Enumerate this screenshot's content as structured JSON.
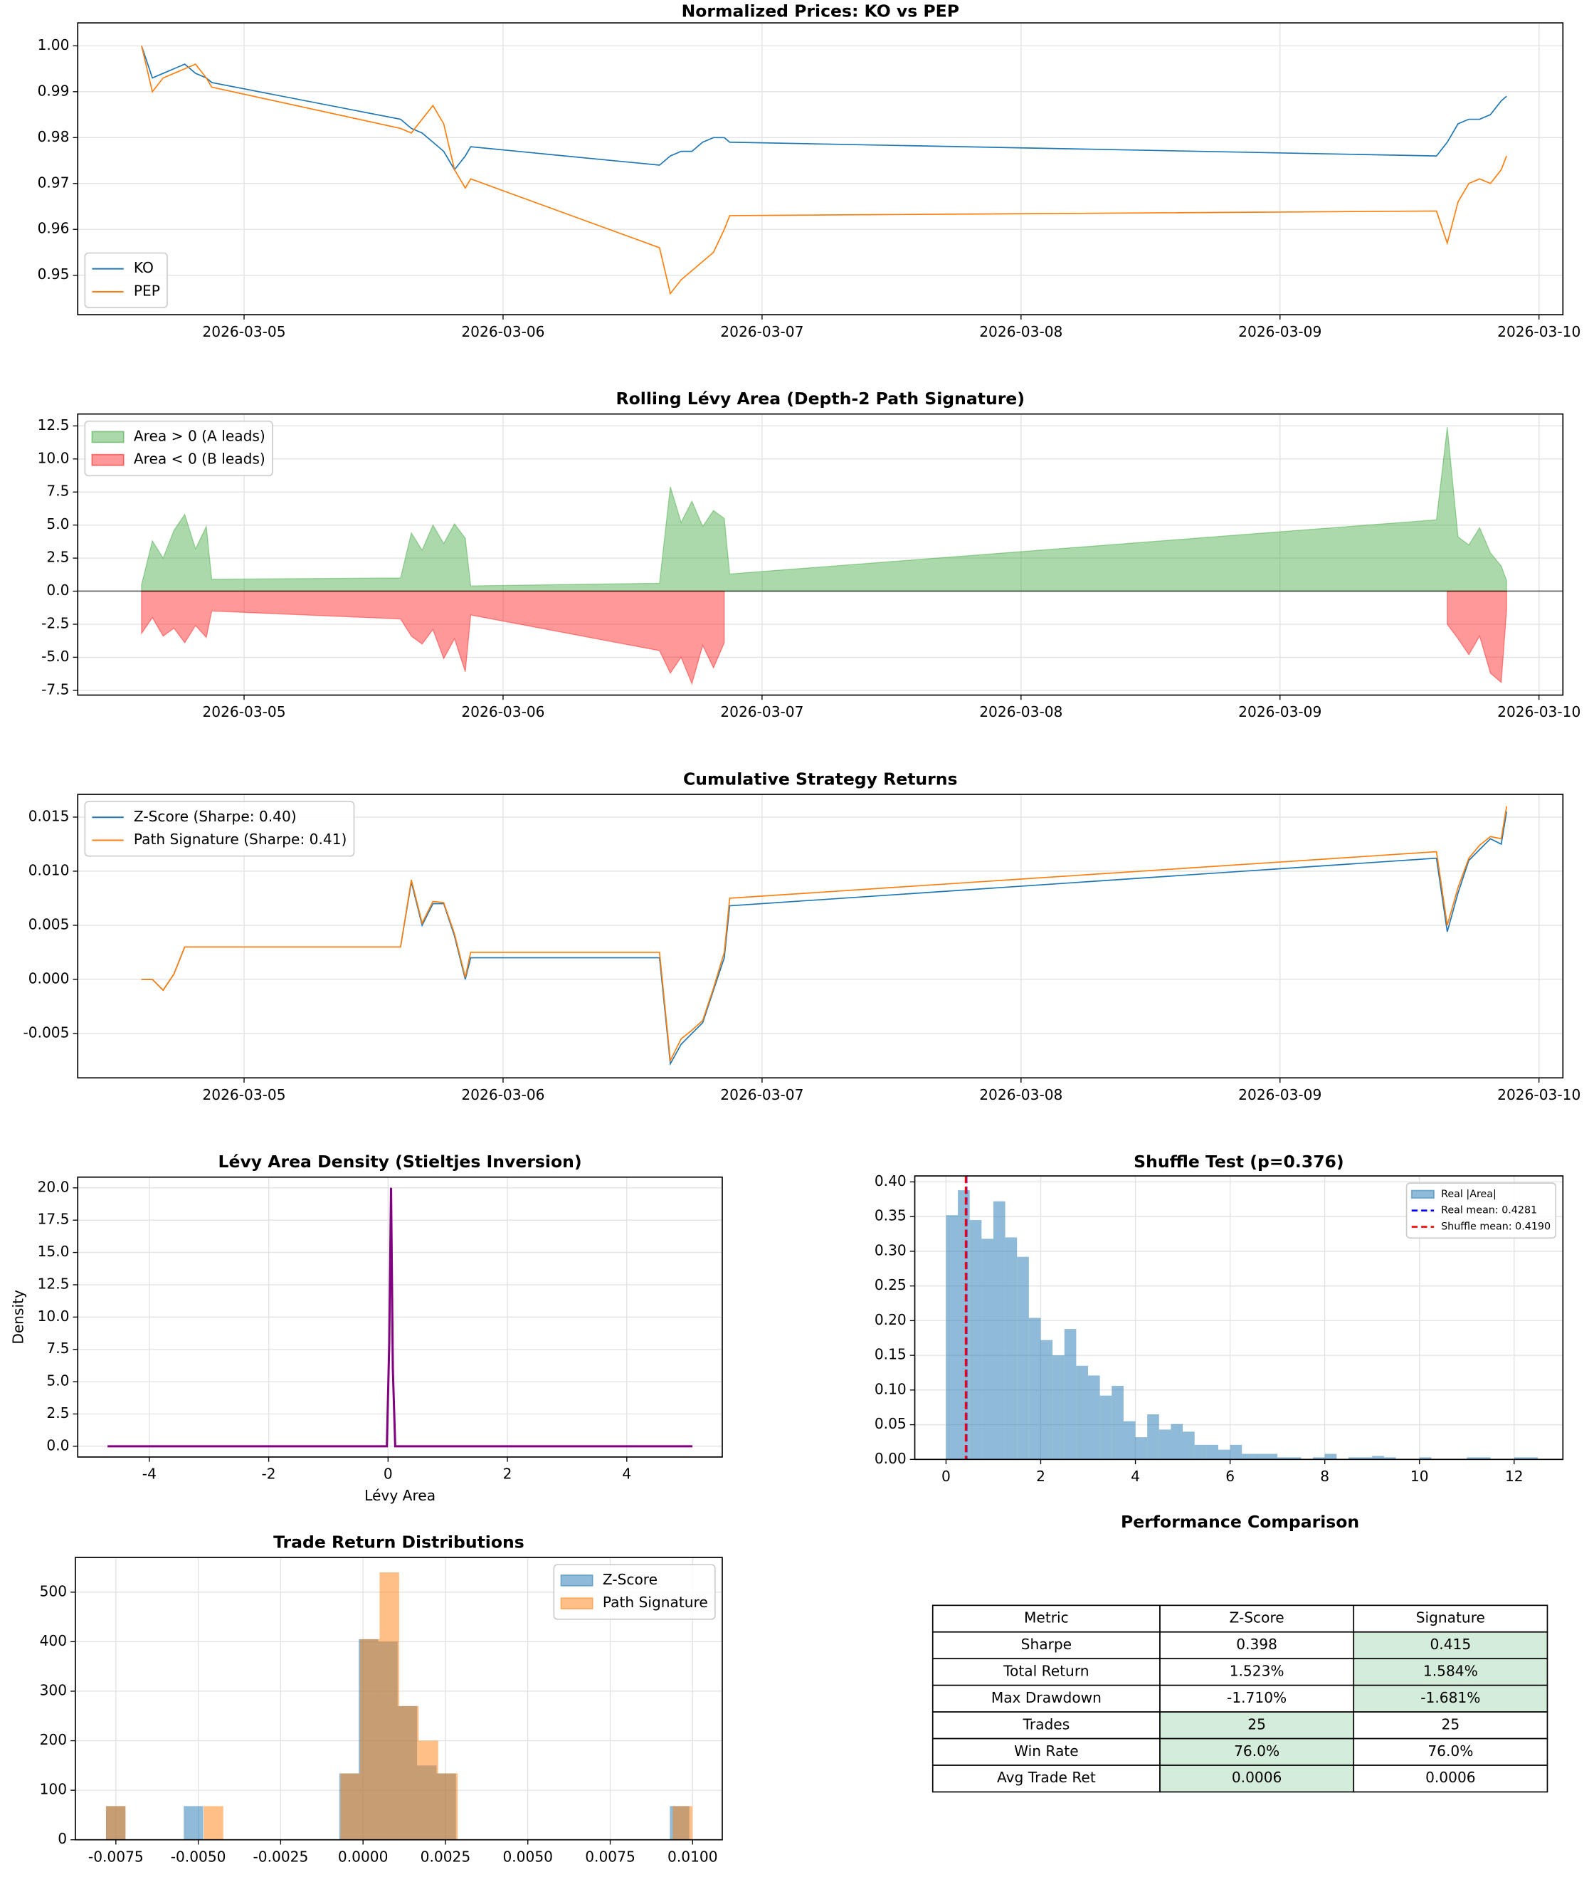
{
  "chart_data": [
    {
      "type": "line",
      "title": "Normalized Prices: KO vs PEP",
      "x": [
        "2026-03-04T14:30",
        "2026-03-04T15:30",
        "2026-03-04T16:30",
        "2026-03-04T17:30",
        "2026-03-04T18:30",
        "2026-03-04T19:30",
        "2026-03-04T20:30",
        "2026-03-04T21:00",
        "2026-03-05T14:30",
        "2026-03-05T15:30",
        "2026-03-05T16:30",
        "2026-03-05T17:30",
        "2026-03-05T18:30",
        "2026-03-05T19:30",
        "2026-03-05T20:30",
        "2026-03-05T21:00",
        "2026-03-06T14:30",
        "2026-03-06T15:30",
        "2026-03-06T16:30",
        "2026-03-06T17:30",
        "2026-03-06T18:30",
        "2026-03-06T19:30",
        "2026-03-06T20:30",
        "2026-03-06T21:00",
        "2026-03-09T14:30",
        "2026-03-09T15:30",
        "2026-03-09T16:30",
        "2026-03-09T17:30",
        "2026-03-09T18:30",
        "2026-03-09T19:30",
        "2026-03-09T20:30",
        "2026-03-09T21:00"
      ],
      "series": [
        {
          "name": "KO",
          "color": "#1f77b4",
          "values": [
            1.0,
            0.993,
            0.994,
            0.995,
            0.996,
            0.994,
            0.993,
            0.992,
            0.984,
            0.982,
            0.981,
            0.979,
            0.977,
            0.973,
            0.976,
            0.978,
            0.974,
            0.976,
            0.977,
            0.977,
            0.979,
            0.98,
            0.98,
            0.979,
            0.976,
            0.979,
            0.983,
            0.984,
            0.984,
            0.985,
            0.988,
            0.989
          ]
        },
        {
          "name": "PEP",
          "color": "#ff7f0e",
          "values": [
            1.0,
            0.99,
            0.993,
            0.994,
            0.995,
            0.996,
            0.993,
            0.991,
            0.982,
            0.981,
            0.984,
            0.987,
            0.983,
            0.973,
            0.969,
            0.971,
            0.956,
            0.946,
            0.949,
            0.951,
            0.953,
            0.955,
            0.96,
            0.963,
            0.964,
            0.957,
            0.966,
            0.97,
            0.971,
            0.97,
            0.973,
            0.976
          ]
        }
      ],
      "xlim": [
        "2026-03-04T08:35",
        "2026-03-10T02:13"
      ],
      "xticks": [
        "2026-03-05",
        "2026-03-06",
        "2026-03-07",
        "2026-03-08",
        "2026-03-09",
        "2026-03-10"
      ],
      "ylim": [
        0.9414,
        1.005
      ],
      "yticks": [
        0.95,
        0.96,
        0.97,
        0.98,
        0.99,
        {
          "value": 1,
          "label": "1.00"
        }
      ],
      "grid": true,
      "legend": "lower left"
    },
    {
      "type": "area",
      "title": "Rolling Lévy Area (Depth-2 Path Signature)",
      "x": [
        "2026-03-04T14:30",
        "2026-03-04T15:30",
        "2026-03-04T16:30",
        "2026-03-04T17:30",
        "2026-03-04T18:30",
        "2026-03-04T19:30",
        "2026-03-04T20:30",
        "2026-03-04T21:00",
        "2026-03-05T14:30",
        "2026-03-05T15:30",
        "2026-03-05T16:30",
        "2026-03-05T17:30",
        "2026-03-05T18:30",
        "2026-03-05T19:30",
        "2026-03-05T20:30",
        "2026-03-05T21:00",
        "2026-03-06T14:30",
        "2026-03-06T15:30",
        "2026-03-06T16:30",
        "2026-03-06T17:30",
        "2026-03-06T18:30",
        "2026-03-06T19:30",
        "2026-03-06T20:30",
        "2026-03-06T21:00",
        "2026-03-09T14:30",
        "2026-03-09T15:30",
        "2026-03-09T16:30",
        "2026-03-09T17:30",
        "2026-03-09T18:30",
        "2026-03-09T19:30",
        "2026-03-09T20:30",
        "2026-03-09T21:00"
      ],
      "series": [
        {
          "name": "Area > 0 (A leads)",
          "color": "#2ca02c",
          "values": [
            0.5,
            3.8,
            2.5,
            4.6,
            5.8,
            3.2,
            4.9,
            0.9,
            1.0,
            4.4,
            3.1,
            5.0,
            3.6,
            5.1,
            4.0,
            0.4,
            0.6,
            7.9,
            5.2,
            6.8,
            4.9,
            6.1,
            5.5,
            1.3,
            5.4,
            12.4,
            4.1,
            3.5,
            4.8,
            2.9,
            1.9,
            0.8
          ]
        },
        {
          "name": "Area < 0 (B leads)",
          "color": "#ff0000",
          "values": [
            -3.2,
            -2.0,
            -3.4,
            -2.8,
            -3.9,
            -2.6,
            -3.5,
            -1.5,
            -2.1,
            -3.4,
            -4.0,
            -2.9,
            -5.1,
            -3.6,
            -6.1,
            -1.8,
            -4.5,
            -6.2,
            -5.0,
            -7.0,
            -4.1,
            -5.8,
            -3.9,
            null,
            null,
            -2.5,
            -3.6,
            -4.8,
            -3.4,
            -6.2,
            -6.9,
            -1.4
          ]
        }
      ],
      "xlim": [
        "2026-03-04T08:35",
        "2026-03-10T02:13"
      ],
      "xticks": [
        "2026-03-05",
        "2026-03-06",
        "2026-03-07",
        "2026-03-08",
        "2026-03-09",
        "2026-03-10"
      ],
      "ylim": [
        -7.86,
        13.4
      ],
      "yticks": [
        -7.5,
        {
          "value": -5,
          "label": "-5.0"
        },
        -2.5,
        {
          "value": 0,
          "label": "0.0"
        },
        2.5,
        {
          "value": 5,
          "label": "5.0"
        },
        7.5,
        {
          "value": 10,
          "label": "10.0"
        },
        12.5
      ],
      "grid": true,
      "zero_line": true,
      "legend": "upper left"
    },
    {
      "type": "line",
      "title": "Cumulative Strategy Returns",
      "x": [
        "2026-03-04T14:30",
        "2026-03-04T15:30",
        "2026-03-04T16:30",
        "2026-03-04T17:30",
        "2026-03-04T18:30",
        "2026-03-04T19:30",
        "2026-03-04T20:30",
        "2026-03-04T21:00",
        "2026-03-05T14:30",
        "2026-03-05T15:30",
        "2026-03-05T16:30",
        "2026-03-05T17:30",
        "2026-03-05T18:30",
        "2026-03-05T19:30",
        "2026-03-05T20:30",
        "2026-03-05T21:00",
        "2026-03-06T14:30",
        "2026-03-06T15:30",
        "2026-03-06T16:30",
        "2026-03-06T17:30",
        "2026-03-06T18:30",
        "2026-03-06T19:30",
        "2026-03-06T20:30",
        "2026-03-06T21:00",
        "2026-03-09T14:30",
        "2026-03-09T15:30",
        "2026-03-09T16:30",
        "2026-03-09T17:30",
        "2026-03-09T18:30",
        "2026-03-09T19:30",
        "2026-03-09T20:30",
        "2026-03-09T21:00"
      ],
      "series": [
        {
          "name": "Z-Score (Sharpe: 0.40)",
          "color": "#1f77b4",
          "values": [
            0,
            0,
            -0.001,
            0.0005,
            0.003,
            0.003,
            0.003,
            0.003,
            0.003,
            0.009,
            0.005,
            0.007,
            0.007,
            0.004,
            0.0,
            0.002,
            0.002,
            -0.0078,
            -0.006,
            -0.005,
            -0.004,
            -0.001,
            0.002,
            0.0068,
            0.0112,
            0.0044,
            0.008,
            0.011,
            0.012,
            0.013,
            0.0125,
            0.0155
          ]
        },
        {
          "name": "Path Signature (Sharpe: 0.41)",
          "color": "#ff7f0e",
          "values": [
            0,
            0,
            -0.001,
            0.0005,
            0.003,
            0.003,
            0.003,
            0.003,
            0.003,
            0.0092,
            0.0052,
            0.0072,
            0.0071,
            0.0042,
            0.0002,
            0.0025,
            0.0025,
            -0.0075,
            -0.0055,
            -0.0047,
            -0.0038,
            -0.0008,
            0.0025,
            0.0075,
            0.0118,
            0.005,
            0.0085,
            0.0112,
            0.0124,
            0.0132,
            0.013,
            0.016
          ]
        }
      ],
      "xlim": [
        "2026-03-04T08:35",
        "2026-03-10T02:13"
      ],
      "xticks": [
        "2026-03-05",
        "2026-03-06",
        "2026-03-07",
        "2026-03-08",
        "2026-03-09",
        "2026-03-10"
      ],
      "ylim": [
        -0.0091,
        0.0171
      ],
      "yticks": [
        -0.005,
        {
          "value": 0,
          "label": "0.000"
        },
        0.005,
        {
          "value": 0.01,
          "label": "0.010"
        },
        0.015
      ],
      "grid": true,
      "legend": "upper left"
    },
    {
      "type": "line",
      "title": "Lévy Area Density (Stieltjes Inversion)",
      "xlabel": "Lévy Area",
      "ylabel": "Density",
      "x": [
        -4.7,
        -1,
        -0.02,
        0.02,
        0.05,
        0.08,
        0.12,
        1,
        5.1
      ],
      "values": [
        0,
        0,
        0,
        8,
        20,
        6,
        0,
        0,
        0
      ],
      "color": "#800080",
      "xlim": [
        -5.2,
        5.6
      ],
      "xticks": [
        -4,
        -2,
        0,
        2,
        4
      ],
      "ylim": [
        -0.83,
        20.83
      ],
      "yticks": [
        {
          "value": 0,
          "label": "0.0"
        },
        2.5,
        {
          "value": 5,
          "label": "5.0"
        },
        7.5,
        {
          "value": 10,
          "label": "10.0"
        },
        12.5,
        {
          "value": 15,
          "label": "15.0"
        },
        17.5,
        {
          "value": 20,
          "label": "20.0"
        }
      ],
      "grid": true
    },
    {
      "type": "histogram",
      "title": "Shuffle Test (p=0.376)",
      "series": [
        {
          "name": "Real |Area|",
          "color": "#1f77b4",
          "bins": [
            0,
            0.25,
            0.5,
            0.75,
            1,
            1.25,
            1.5,
            1.75,
            2,
            2.25,
            2.5,
            2.75,
            3,
            3.25,
            3.5,
            3.75,
            4,
            4.25,
            4.5,
            4.75,
            5,
            5.25,
            5.5,
            5.75,
            6,
            6.25,
            6.5,
            6.75,
            7,
            7.25,
            7.5,
            7.75,
            8,
            8.25,
            8.5,
            8.75,
            9,
            9.25,
            9.5,
            9.75,
            10,
            10.25,
            10.5,
            10.75,
            11,
            11.25,
            11.5,
            11.75,
            12,
            12.25,
            12.5
          ],
          "values": [
            0.352,
            0.388,
            0.345,
            0.318,
            0.372,
            0.32,
            0.292,
            0.204,
            0.172,
            0.15,
            0.188,
            0.135,
            0.121,
            0.092,
            0.106,
            0.055,
            0.032,
            0.065,
            0.043,
            0.051,
            0.04,
            0.021,
            0.021,
            0.014,
            0.021,
            0.008,
            0.008,
            0.008,
            0.003,
            0.003,
            0,
            0.003,
            0.008,
            0,
            0.003,
            0.003,
            0.005,
            0.003,
            0,
            0,
            0.003,
            0,
            0,
            0,
            0.003,
            0.003,
            0,
            0,
            0.003,
            0.003
          ]
        }
      ],
      "vlines": [
        {
          "name": "Real mean: 0.4281",
          "value": 0.4281,
          "color": "#0000ff"
        },
        {
          "name": "Shuffle mean: 0.4190",
          "value": 0.419,
          "color": "#ff0000"
        }
      ],
      "xlim": [
        -0.66,
        13.03
      ],
      "xticks": [
        0,
        2,
        4,
        6,
        8,
        10,
        12
      ],
      "ylim": [
        0,
        0.4086
      ],
      "yticks": [
        {
          "value": 0,
          "label": "0.00"
        },
        0.05,
        {
          "value": 0.1,
          "label": "0.10"
        },
        0.15,
        {
          "value": 0.2,
          "label": "0.20"
        },
        0.25,
        {
          "value": 0.3,
          "label": "0.30"
        },
        0.35,
        {
          "value": 0.4,
          "label": "0.40"
        }
      ],
      "grid": true,
      "legend": "upper right"
    },
    {
      "type": "histogram",
      "title": "Trade Return Distributions",
      "series": [
        {
          "name": "Z-Score",
          "color": "#1f77b4",
          "bins": [
            -0.0078,
            -0.00721,
            -0.00662,
            -0.00603,
            -0.00544,
            -0.00485,
            -0.00426,
            -0.00367,
            -0.00308,
            -0.00249,
            -0.0019,
            -0.00131,
            -0.00072,
            -0.00013,
            0.00046,
            0.00105,
            0.00164,
            0.00223,
            0.00282,
            0.00341,
            0.004,
            0.00459,
            0.00518,
            0.00577,
            0.00636,
            0.00695,
            0.00754,
            0.00813,
            0.00872,
            0.00931,
            0.0099
          ],
          "values": [
            68,
            0,
            0,
            0,
            68,
            0,
            0,
            0,
            0,
            0,
            0,
            0,
            134,
            405,
            400,
            270,
            150,
            134,
            0,
            0,
            0,
            0,
            0,
            0,
            0,
            0,
            0,
            0,
            0,
            68
          ]
        },
        {
          "name": "Path Signature",
          "color": "#ff7f0e",
          "bins": [
            -0.0078,
            -0.007207,
            -0.006614,
            -0.006021,
            -0.005428,
            -0.004835,
            -0.004242,
            -0.003649,
            -0.003056,
            -0.002463,
            -0.00187,
            -0.001277,
            -0.000684,
            -9.1e-05,
            0.000502,
            0.001095,
            0.001688,
            0.002281,
            0.002874,
            0.003467,
            0.00406,
            0.004653,
            0.005246,
            0.005839,
            0.006432,
            0.007025,
            0.007618,
            0.008211,
            0.008804,
            0.009397,
            0.00999
          ],
          "values": [
            68,
            0,
            0,
            0,
            0,
            68,
            0,
            0,
            0,
            0,
            0,
            0,
            134,
            405,
            540,
            270,
            200,
            134,
            0,
            0,
            0,
            0,
            0,
            0,
            0,
            0,
            0,
            0,
            0,
            68
          ]
        }
      ],
      "xlim": [
        -0.00873,
        0.0109
      ],
      "xticks": [
        -0.0075,
        {
          "value": -0.005,
          "label": "-0.0050"
        },
        -0.0025,
        {
          "value": 0,
          "label": "0.0000"
        },
        0.0025,
        {
          "value": 0.005,
          "label": "0.0050"
        },
        0.0075,
        {
          "value": 0.01,
          "label": "0.0100"
        }
      ],
      "ylim": [
        0,
        570
      ],
      "yticks": [
        0,
        100,
        200,
        300,
        400,
        500
      ],
      "grid": true,
      "legend": "upper right"
    },
    {
      "type": "table",
      "title": "Performance Comparison",
      "columns": [
        "Metric",
        "Z-Score",
        "Signature"
      ],
      "rows": [
        [
          "Sharpe",
          "0.398",
          "0.415"
        ],
        [
          "Total Return",
          "1.523%",
          "1.584%"
        ],
        [
          "Max Drawdown",
          "-1.710%",
          "-1.681%"
        ],
        [
          "Trades",
          "25",
          "25"
        ],
        [
          "Win Rate",
          "76.0%",
          "76.0%"
        ],
        [
          "Avg Trade Ret",
          "0.0006",
          "0.0006"
        ]
      ],
      "highlight": [
        "Signature",
        "Signature",
        "Signature",
        "Z-Score",
        "Z-Score",
        "Z-Score"
      ],
      "highlight_color": "#d4edda"
    }
  ]
}
